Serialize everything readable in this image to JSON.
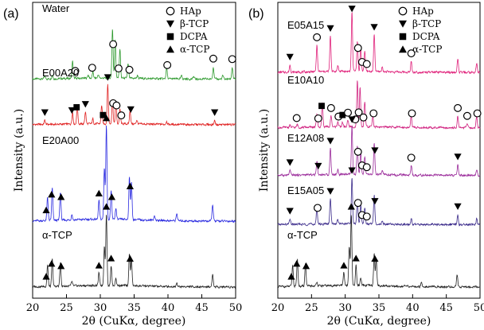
{
  "chart_data": [
    {
      "type": "line",
      "panel_label": "(a)",
      "xlabel": "2θ (CuKα, degree)",
      "ylabel": "Intensity (a.u.)",
      "xlim": [
        20,
        50
      ],
      "xticks": [
        "20",
        "25",
        "30",
        "35",
        "40",
        "45",
        "50"
      ],
      "legend": [
        {
          "marker": "circle-open",
          "label": "HAp"
        },
        {
          "marker": "triangle-down",
          "label": "β-TCP"
        },
        {
          "marker": "square",
          "label": "DCPA"
        },
        {
          "marker": "triangle-up",
          "label": "α-TCP"
        }
      ],
      "series": [
        {
          "name": "Water",
          "color": "#2e9a2e",
          "peaks": [
            [
              21.8,
              0.05
            ],
            [
              22.9,
              0.08
            ],
            [
              25.9,
              0.35
            ],
            [
              28.2,
              0.07
            ],
            [
              28.9,
              0.12
            ],
            [
              29.7,
              0.07
            ],
            [
              31.8,
              1.0
            ],
            [
              32.2,
              0.78
            ],
            [
              32.9,
              0.6
            ],
            [
              34.1,
              0.28
            ],
            [
              35.5,
              0.06
            ],
            [
              39.8,
              0.22
            ],
            [
              42.0,
              0.06
            ],
            [
              43.8,
              0.05
            ],
            [
              46.7,
              0.25
            ],
            [
              48.1,
              0.07
            ],
            [
              49.5,
              0.24
            ]
          ],
          "markers": [
            {
              "x": 26.3,
              "type": "circle-open"
            },
            {
              "x": 28.8,
              "type": "circle-open"
            },
            {
              "x": 31.9,
              "type": "circle-open"
            },
            {
              "x": 32.7,
              "type": "circle-open"
            },
            {
              "x": 34.3,
              "type": "circle-open"
            },
            {
              "x": 39.9,
              "type": "circle-open"
            },
            {
              "x": 46.7,
              "type": "circle-open"
            },
            {
              "x": 49.5,
              "type": "circle-open"
            }
          ]
        },
        {
          "name": "E00A20",
          "color": "#e02020",
          "peaks": [
            [
              21.8,
              0.1
            ],
            [
              25.9,
              0.28
            ],
            [
              26.6,
              0.42
            ],
            [
              27.8,
              0.3
            ],
            [
              28.9,
              0.12
            ],
            [
              30.2,
              0.45
            ],
            [
              31.1,
              0.95
            ],
            [
              31.8,
              0.6
            ],
            [
              32.3,
              0.5
            ],
            [
              32.9,
              0.35
            ],
            [
              34.4,
              0.32
            ],
            [
              35.4,
              0.1
            ],
            [
              39.8,
              0.08
            ],
            [
              46.9,
              0.1
            ]
          ],
          "markers": [
            {
              "x": 21.8,
              "type": "triangle-down"
            },
            {
              "x": 25.8,
              "type": "triangle-down"
            },
            {
              "x": 26.5,
              "type": "square"
            },
            {
              "x": 27.8,
              "type": "triangle-down"
            },
            {
              "x": 30.4,
              "type": "square"
            },
            {
              "x": 31.1,
              "type": "triangle-down"
            },
            {
              "x": 31.9,
              "type": "circle-open"
            },
            {
              "x": 32.4,
              "type": "circle-open"
            },
            {
              "x": 33.1,
              "type": "circle-open"
            },
            {
              "x": 34.5,
              "type": "triangle-down"
            },
            {
              "x": 46.9,
              "type": "triangle-down"
            }
          ]
        },
        {
          "name": "E20A00",
          "color": "#2a2ae0",
          "peaks": [
            [
              22.2,
              0.25
            ],
            [
              22.9,
              0.35
            ],
            [
              24.1,
              0.3
            ],
            [
              25.8,
              0.06
            ],
            [
              29.8,
              0.2
            ],
            [
              30.6,
              0.55
            ],
            [
              30.9,
              1.0
            ],
            [
              31.6,
              0.3
            ],
            [
              32.3,
              0.12
            ],
            [
              34.3,
              0.45
            ],
            [
              34.6,
              0.4
            ],
            [
              38.0,
              0.05
            ],
            [
              41.3,
              0.08
            ],
            [
              46.6,
              0.18
            ]
          ],
          "markers": [
            {
              "x": 22.0,
              "type": "triangle-up"
            },
            {
              "x": 22.8,
              "type": "triangle-up"
            },
            {
              "x": 24.2,
              "type": "triangle-up"
            },
            {
              "x": 29.8,
              "type": "triangle-up"
            },
            {
              "x": 30.9,
              "type": "triangle-up"
            },
            {
              "x": 31.7,
              "type": "triangle-up"
            },
            {
              "x": 34.4,
              "type": "triangle-up"
            }
          ]
        },
        {
          "name": "α-TCP",
          "color": "#222222",
          "peaks": [
            [
              22.2,
              0.3
            ],
            [
              22.9,
              0.38
            ],
            [
              24.1,
              0.32
            ],
            [
              25.8,
              0.06
            ],
            [
              29.8,
              0.18
            ],
            [
              30.6,
              0.55
            ],
            [
              30.9,
              1.0
            ],
            [
              31.6,
              0.28
            ],
            [
              32.3,
              0.1
            ],
            [
              34.3,
              0.45
            ],
            [
              34.6,
              0.38
            ],
            [
              41.3,
              0.06
            ],
            [
              46.6,
              0.18
            ]
          ],
          "markers": [
            {
              "x": 22.0,
              "type": "triangle-up"
            },
            {
              "x": 22.8,
              "type": "triangle-up"
            },
            {
              "x": 24.2,
              "type": "triangle-up"
            },
            {
              "x": 29.8,
              "type": "triangle-up"
            },
            {
              "x": 30.9,
              "type": "triangle-up"
            },
            {
              "x": 31.6,
              "type": "triangle-up"
            },
            {
              "x": 34.4,
              "type": "triangle-up"
            }
          ]
        }
      ]
    },
    {
      "type": "line",
      "panel_label": "(b)",
      "xlabel": "2θ (CuKα, degree)",
      "ylabel": "Intensity (a.u.)",
      "xlim": [
        20,
        50
      ],
      "xticks": [
        "20",
        "25",
        "30",
        "35",
        "40",
        "45",
        "50"
      ],
      "legend": [
        {
          "marker": "circle-open",
          "label": "HAp"
        },
        {
          "marker": "triangle-down",
          "label": "β-TCP"
        },
        {
          "marker": "square",
          "label": "DCPA"
        },
        {
          "marker": "triangle-up",
          "label": "α-TCP"
        }
      ],
      "series": [
        {
          "name": "E05A15",
          "color": "#e0207a",
          "peaks": [
            [
              21.8,
              0.12
            ],
            [
              25.8,
              0.45
            ],
            [
              27.8,
              0.6
            ],
            [
              28.9,
              0.1
            ],
            [
              31.0,
              1.0
            ],
            [
              31.8,
              0.5
            ],
            [
              32.3,
              0.42
            ],
            [
              32.9,
              0.35
            ],
            [
              34.3,
              0.62
            ],
            [
              35.5,
              0.08
            ],
            [
              39.8,
              0.18
            ],
            [
              46.7,
              0.22
            ],
            [
              49.5,
              0.15
            ]
          ],
          "markers": [
            {
              "x": 21.8,
              "type": "triangle-down"
            },
            {
              "x": 25.8,
              "type": "circle-open"
            },
            {
              "x": 27.8,
              "type": "triangle-down"
            },
            {
              "x": 31.0,
              "type": "triangle-down"
            },
            {
              "x": 31.9,
              "type": "circle-open"
            },
            {
              "x": 32.5,
              "type": "circle-open"
            },
            {
              "x": 33.2,
              "type": "circle-open"
            },
            {
              "x": 34.3,
              "type": "triangle-down"
            },
            {
              "x": 39.8,
              "type": "circle-open"
            }
          ]
        },
        {
          "name": "E10A10",
          "color": "#d0207f",
          "peaks": [
            [
              21.8,
              0.05
            ],
            [
              22.9,
              0.06
            ],
            [
              25.8,
              0.3
            ],
            [
              26.6,
              0.55
            ],
            [
              27.9,
              0.25
            ],
            [
              28.9,
              0.12
            ],
            [
              29.6,
              0.1
            ],
            [
              30.4,
              0.15
            ],
            [
              31.8,
              1.0
            ],
            [
              32.2,
              0.85
            ],
            [
              32.9,
              0.55
            ],
            [
              34.1,
              0.25
            ],
            [
              39.8,
              0.25
            ],
            [
              46.7,
              0.25
            ],
            [
              48.1,
              0.08
            ],
            [
              49.5,
              0.25
            ]
          ],
          "markers": [
            {
              "x": 22.8,
              "type": "circle-open"
            },
            {
              "x": 26.0,
              "type": "circle-open"
            },
            {
              "x": 26.5,
              "type": "square"
            },
            {
              "x": 27.9,
              "type": "circle-open"
            },
            {
              "x": 29.0,
              "type": "circle-open"
            },
            {
              "x": 29.6,
              "type": "square"
            },
            {
              "x": 30.4,
              "type": "circle-open"
            },
            {
              "x": 31.5,
              "type": "circle-open"
            },
            {
              "x": 32.0,
              "type": "circle-open"
            },
            {
              "x": 32.7,
              "type": "circle-open"
            },
            {
              "x": 34.2,
              "type": "circle-open"
            },
            {
              "x": 39.9,
              "type": "circle-open"
            },
            {
              "x": 46.7,
              "type": "circle-open"
            },
            {
              "x": 48.1,
              "type": "circle-open"
            },
            {
              "x": 49.6,
              "type": "circle-open"
            }
          ]
        },
        {
          "name": "E12A08",
          "color": "#9a2a9a",
          "peaks": [
            [
              21.8,
              0.1
            ],
            [
              25.8,
              0.3
            ],
            [
              27.8,
              0.55
            ],
            [
              28.9,
              0.1
            ],
            [
              31.0,
              1.0
            ],
            [
              31.8,
              0.6
            ],
            [
              32.3,
              0.45
            ],
            [
              32.9,
              0.38
            ],
            [
              34.3,
              0.65
            ],
            [
              35.5,
              0.08
            ],
            [
              39.8,
              0.2
            ],
            [
              46.7,
              0.22
            ],
            [
              49.5,
              0.12
            ]
          ],
          "markers": [
            {
              "x": 21.8,
              "type": "triangle-down"
            },
            {
              "x": 26.0,
              "type": "triangle-down"
            },
            {
              "x": 27.8,
              "type": "triangle-down"
            },
            {
              "x": 31.0,
              "type": "triangle-down"
            },
            {
              "x": 31.9,
              "type": "circle-open"
            },
            {
              "x": 32.5,
              "type": "circle-open"
            },
            {
              "x": 33.2,
              "type": "circle-open"
            },
            {
              "x": 34.4,
              "type": "triangle-down"
            },
            {
              "x": 39.8,
              "type": "circle-open"
            },
            {
              "x": 46.7,
              "type": "triangle-down"
            }
          ]
        },
        {
          "name": "E15A05",
          "color": "#3a2a8a",
          "peaks": [
            [
              21.8,
              0.12
            ],
            [
              25.8,
              0.35
            ],
            [
              27.8,
              0.55
            ],
            [
              28.9,
              0.1
            ],
            [
              31.0,
              1.0
            ],
            [
              31.8,
              0.55
            ],
            [
              32.3,
              0.4
            ],
            [
              32.9,
              0.35
            ],
            [
              34.3,
              0.62
            ],
            [
              35.5,
              0.08
            ],
            [
              39.8,
              0.12
            ],
            [
              46.7,
              0.22
            ],
            [
              49.5,
              0.12
            ]
          ],
          "markers": [
            {
              "x": 21.8,
              "type": "triangle-down"
            },
            {
              "x": 25.9,
              "type": "circle-open"
            },
            {
              "x": 27.8,
              "type": "triangle-down"
            },
            {
              "x": 31.0,
              "type": "triangle-down"
            },
            {
              "x": 31.9,
              "type": "circle-open"
            },
            {
              "x": 32.5,
              "type": "circle-open"
            },
            {
              "x": 33.2,
              "type": "circle-open"
            },
            {
              "x": 34.4,
              "type": "triangle-down"
            },
            {
              "x": 46.7,
              "type": "triangle-down"
            }
          ]
        },
        {
          "name": "α-TCP",
          "color": "#222222",
          "peaks": [
            [
              22.2,
              0.3
            ],
            [
              22.9,
              0.38
            ],
            [
              24.1,
              0.32
            ],
            [
              25.8,
              0.06
            ],
            [
              29.8,
              0.18
            ],
            [
              30.6,
              0.55
            ],
            [
              30.9,
              1.0
            ],
            [
              31.6,
              0.28
            ],
            [
              32.3,
              0.1
            ],
            [
              34.3,
              0.45
            ],
            [
              34.6,
              0.38
            ],
            [
              41.3,
              0.06
            ],
            [
              46.6,
              0.18
            ]
          ],
          "markers": [
            {
              "x": 22.0,
              "type": "triangle-up"
            },
            {
              "x": 22.8,
              "type": "triangle-up"
            },
            {
              "x": 24.2,
              "type": "triangle-up"
            },
            {
              "x": 29.8,
              "type": "triangle-up"
            },
            {
              "x": 30.9,
              "type": "triangle-up"
            },
            {
              "x": 31.6,
              "type": "triangle-up"
            },
            {
              "x": 34.4,
              "type": "triangle-up"
            }
          ]
        }
      ]
    }
  ]
}
